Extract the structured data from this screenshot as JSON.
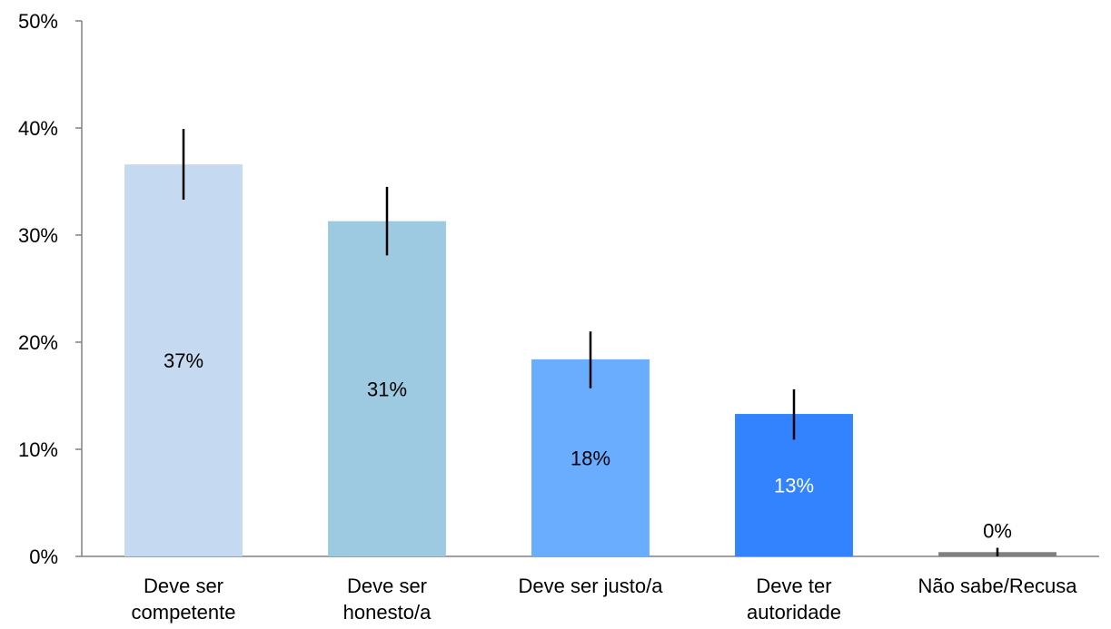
{
  "chart_data": {
    "type": "bar",
    "categories": [
      [
        "Deve ser",
        "competente"
      ],
      [
        "Deve ser",
        "honesto/a"
      ],
      [
        "Deve ser justo/a"
      ],
      [
        "Deve ter",
        "autoridade"
      ],
      [
        "Não sabe/Recusa"
      ]
    ],
    "values": [
      36.6,
      31.3,
      18.4,
      13.3,
      0.4
    ],
    "data_labels": [
      "37%",
      "31%",
      "18%",
      "13%",
      "0%"
    ],
    "error_bars": [
      [
        33.3,
        39.9
      ],
      [
        28.1,
        34.5
      ],
      [
        15.7,
        21.0
      ],
      [
        10.9,
        15.6
      ],
      [
        0.0,
        0.8
      ]
    ],
    "bar_colors": [
      "#c5daf0",
      "#9ecae1",
      "#6aadff",
      "#3383ff",
      "#808080"
    ],
    "label_colors": [
      "#000000",
      "#000000",
      "#000000",
      "#ffffff",
      "#000000"
    ],
    "y_ticks": [
      0,
      10,
      20,
      30,
      40,
      50
    ],
    "y_tick_labels": [
      "0%",
      "10%",
      "20%",
      "30%",
      "40%",
      "50%"
    ],
    "ylim": [
      0,
      50
    ],
    "grid": false,
    "legend": "none"
  }
}
